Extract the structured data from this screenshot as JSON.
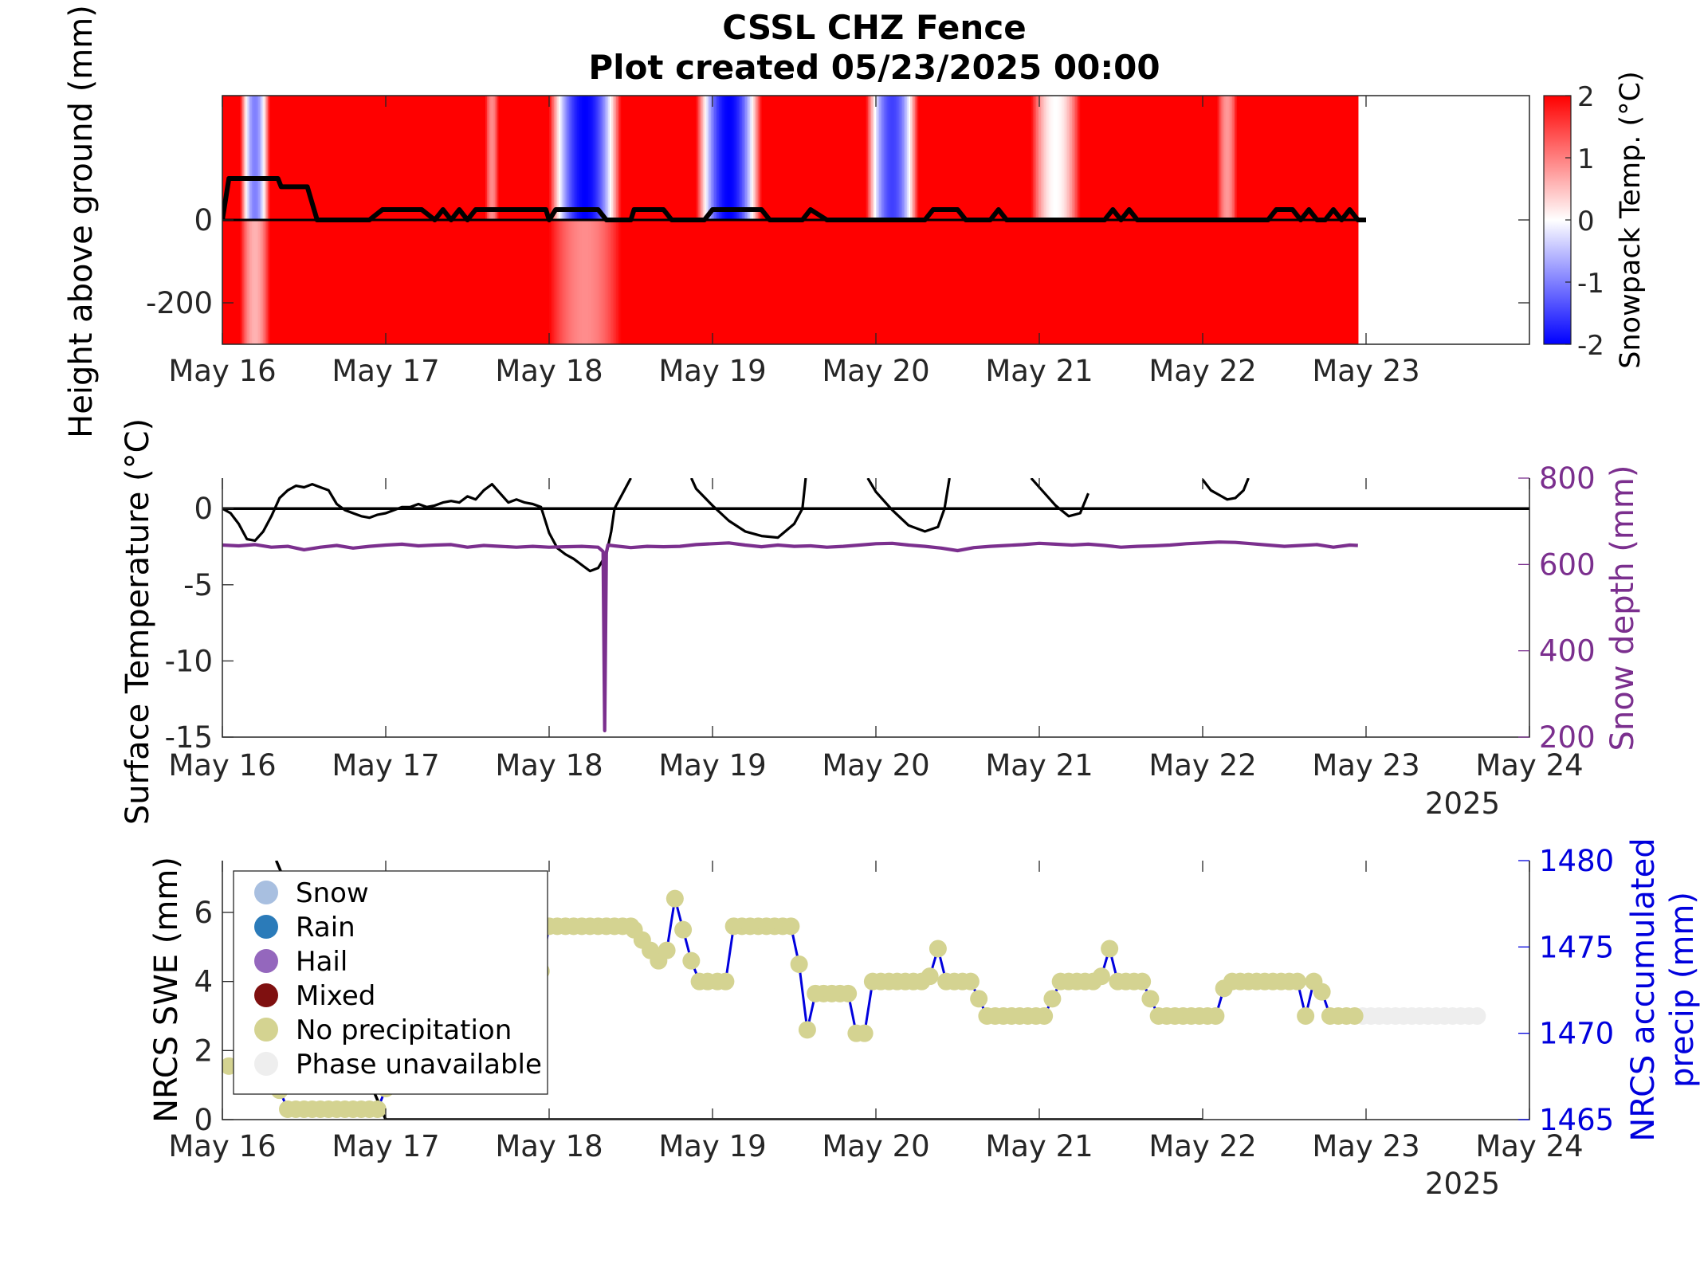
{
  "title": [
    "CSSL CHZ Fence",
    "Plot created 05/23/2025 00:00"
  ],
  "colors": {
    "black": "#000000",
    "purple": "#7b2f8e",
    "blue": "#0000dd",
    "khaki": "#d4d391",
    "unavail": "#eeeeee",
    "red": "#ff0000"
  },
  "chart_data": [
    {
      "type": "heatmap",
      "title": "",
      "ylabel": "Height above ground (mm)",
      "colorbar": {
        "label": "Snowpack Temp. (°C)",
        "ticks": [
          "2",
          "1",
          "0",
          "-1",
          "-2"
        ],
        "range": [
          -2,
          2
        ],
        "colormap": "blue-white-red"
      },
      "xlim": [
        0,
        8
      ],
      "ylim": [
        -300,
        300
      ],
      "y_ticks": [
        "0",
        "-200"
      ],
      "x_tick_labels": [
        "May 16",
        "May 17",
        "May 18",
        "May 19",
        "May 20",
        "May 21",
        "May 22",
        "May 23"
      ],
      "x_tick_positions": [
        0,
        1,
        2,
        3,
        4,
        5,
        6,
        7
      ],
      "data_extent_days": [
        0,
        6.95
      ],
      "cold_bands": [
        {
          "center": 0.2,
          "half_width": 0.09,
          "min_temp_above_ground": -1.0,
          "min_temp_below_ground": 0.6
        },
        {
          "center": 1.65,
          "half_width": 0.04,
          "min_temp_above_ground": 0.9,
          "min_temp_below_ground": 2.0
        },
        {
          "center": 2.22,
          "half_width": 0.22,
          "min_temp_above_ground": -2.0,
          "min_temp_below_ground": 0.9
        },
        {
          "center": 3.1,
          "half_width": 0.2,
          "min_temp_above_ground": -2.0,
          "min_temp_below_ground": 2.0
        },
        {
          "center": 4.1,
          "half_width": 0.16,
          "min_temp_above_ground": -1.5,
          "min_temp_below_ground": 2.0
        },
        {
          "center": 5.1,
          "half_width": 0.15,
          "min_temp_above_ground": 0.0,
          "min_temp_below_ground": 2.0
        },
        {
          "center": 6.15,
          "half_width": 0.06,
          "min_temp_above_ground": 0.8,
          "min_temp_below_ground": 2.0
        }
      ],
      "snow_surface_line": {
        "x": [
          0.0,
          0.02,
          0.04,
          0.34,
          0.36,
          0.52,
          0.58,
          0.9,
          0.98,
          1.22,
          1.3,
          1.35,
          1.4,
          1.45,
          1.5,
          1.55,
          1.6,
          1.65,
          1.7,
          1.75,
          1.8,
          1.85,
          1.9,
          1.95,
          1.98,
          2.0,
          2.04,
          2.3,
          2.35,
          2.5,
          2.52,
          2.7,
          2.75,
          2.95,
          3.0,
          3.05,
          3.3,
          3.35,
          3.55,
          3.6,
          3.7,
          3.75,
          3.8,
          4.3,
          4.35,
          4.5,
          4.55,
          4.7,
          4.75,
          4.8,
          5.4,
          5.45,
          5.5,
          5.55,
          5.6,
          5.65,
          5.7,
          5.75,
          6.4,
          6.45,
          6.55,
          6.6,
          6.65,
          6.7,
          6.75,
          6.8,
          6.85,
          6.9,
          6.95,
          7.0
        ],
        "y": [
          0,
          50,
          100,
          100,
          80,
          80,
          0,
          0,
          25,
          25,
          0,
          25,
          0,
          25,
          0,
          25,
          25,
          25,
          25,
          25,
          25,
          25,
          25,
          25,
          25,
          0,
          25,
          25,
          0,
          0,
          25,
          25,
          0,
          0,
          25,
          25,
          25,
          0,
          0,
          25,
          0,
          0,
          0,
          0,
          25,
          25,
          0,
          0,
          25,
          0,
          0,
          25,
          0,
          25,
          0,
          0,
          0,
          0,
          0,
          25,
          25,
          0,
          25,
          0,
          0,
          25,
          0,
          25,
          0,
          0
        ]
      }
    },
    {
      "type": "line",
      "title": "",
      "ylabel": "Surface Temperature (°C)",
      "y2label": "Snow depth (mm)",
      "xlim": [
        0,
        8
      ],
      "ylim": [
        -15,
        2
      ],
      "y2lim": [
        200,
        800
      ],
      "y_ticks": [
        "0",
        "-5",
        "-10",
        "-15"
      ],
      "y2_ticks": [
        "800",
        "600",
        "400",
        "200"
      ],
      "x_tick_labels": [
        "May 16",
        "May 17",
        "May 18",
        "May 19",
        "May 20",
        "May 21",
        "May 22",
        "May 23",
        "May 24"
      ],
      "x_tick_positions": [
        0,
        1,
        2,
        3,
        4,
        5,
        6,
        7,
        8
      ],
      "year_label": "2025",
      "zero_line": 0,
      "series": [
        {
          "axis": "left",
          "x": [
            0.0,
            0.05,
            0.1,
            0.15,
            0.2,
            0.25,
            0.3,
            0.35,
            0.4,
            0.45,
            0.5,
            0.55,
            0.6,
            0.65,
            0.7,
            0.75,
            0.8,
            0.85,
            0.9,
            0.95,
            1.0,
            1.05,
            1.1,
            1.15,
            1.2,
            1.25,
            1.3,
            1.35,
            1.4,
            1.45,
            1.5,
            1.55,
            1.6,
            1.65,
            1.7,
            1.75,
            1.8,
            1.85,
            1.9,
            1.95,
            2.0,
            2.05,
            2.1,
            2.15,
            2.2,
            2.25,
            2.3,
            2.35,
            2.38,
            2.4
          ],
          "y": [
            0.0,
            -0.3,
            -1.0,
            -2.0,
            -2.1,
            -1.5,
            -0.5,
            0.7,
            1.2,
            1.5,
            1.4,
            1.6,
            1.4,
            1.2,
            0.3,
            -0.1,
            -0.3,
            -0.5,
            -0.6,
            -0.4,
            -0.3,
            -0.1,
            0.1,
            0.1,
            0.3,
            0.1,
            0.2,
            0.4,
            0.5,
            0.4,
            0.8,
            0.6,
            1.2,
            1.6,
            1.0,
            0.4,
            0.6,
            0.4,
            0.3,
            0.1,
            -1.6,
            -2.6,
            -3.0,
            -3.3,
            -3.7,
            -4.1,
            -3.9,
            -3.0,
            -1.5,
            0.0
          ]
        },
        {
          "axis": "left",
          "x": [
            2.4,
            2.45,
            2.5
          ],
          "y": [
            0.0,
            1.0,
            2.0
          ]
        },
        {
          "axis": "left",
          "x": [
            2.87,
            2.9,
            3.0,
            3.1,
            3.2,
            3.3,
            3.4,
            3.5,
            3.55,
            3.57
          ],
          "y": [
            2.0,
            1.3,
            0.2,
            -0.8,
            -1.5,
            -1.8,
            -1.9,
            -1.0,
            0.0,
            2.0
          ]
        },
        {
          "axis": "left",
          "x": [
            3.95,
            4.0,
            4.1,
            4.2,
            4.3,
            4.38,
            4.42,
            4.45
          ],
          "y": [
            2.0,
            1.1,
            -0.1,
            -1.1,
            -1.5,
            -1.2,
            0.0,
            2.0
          ]
        },
        {
          "axis": "left",
          "x": [
            4.95,
            5.0,
            5.1,
            5.18,
            5.25,
            5.3
          ],
          "y": [
            2.0,
            1.4,
            0.2,
            -0.5,
            -0.3,
            1.0
          ]
        },
        {
          "axis": "left",
          "x": [
            6.0,
            6.05,
            6.1,
            6.15,
            6.2,
            6.25,
            6.28
          ],
          "y": [
            1.9,
            1.2,
            0.9,
            0.6,
            0.7,
            1.2,
            2.0
          ]
        },
        {
          "axis": "right",
          "x": [
            0.0,
            0.1,
            0.2,
            0.3,
            0.4,
            0.5,
            0.6,
            0.7,
            0.8,
            0.9,
            1.0,
            1.1,
            1.2,
            1.3,
            1.4,
            1.5,
            1.6,
            1.7,
            1.8,
            1.9,
            2.0,
            2.1,
            2.2,
            2.3,
            2.33,
            2.34,
            2.35,
            2.36,
            2.4,
            2.5,
            2.6,
            2.7,
            2.8,
            2.9,
            3.0,
            3.1,
            3.2,
            3.3,
            3.4,
            3.5,
            3.6,
            3.7,
            3.8,
            3.9,
            4.0,
            4.1,
            4.2,
            4.3,
            4.4,
            4.5,
            4.6,
            4.7,
            4.8,
            4.9,
            5.0,
            5.1,
            5.2,
            5.3,
            5.4,
            5.5,
            5.6,
            5.7,
            5.8,
            5.9,
            6.0,
            6.1,
            6.2,
            6.3,
            6.4,
            6.5,
            6.6,
            6.7,
            6.8,
            6.9,
            6.95
          ],
          "y": [
            645,
            643,
            646,
            640,
            642,
            634,
            640,
            644,
            638,
            642,
            645,
            647,
            643,
            645,
            646,
            640,
            644,
            642,
            640,
            642,
            640,
            641,
            642,
            640,
            630,
            215,
            628,
            645,
            643,
            639,
            642,
            641,
            642,
            646,
            648,
            650,
            645,
            641,
            645,
            642,
            643,
            640,
            642,
            645,
            648,
            649,
            645,
            642,
            638,
            632,
            639,
            642,
            644,
            646,
            649,
            647,
            645,
            647,
            644,
            640,
            642,
            643,
            645,
            648,
            650,
            652,
            651,
            648,
            645,
            642,
            644,
            646,
            640,
            645,
            644
          ]
        }
      ]
    },
    {
      "type": "scatter",
      "title": "",
      "ylabel": "NRCS SWE (mm)",
      "y2label": [
        "NRCS accumulated",
        "precip (mm)"
      ],
      "xlim": [
        0,
        8
      ],
      "ylim": [
        0,
        7.5
      ],
      "y2lim": [
        1465,
        1480
      ],
      "y_ticks": [
        "0",
        "2",
        "4",
        "6"
      ],
      "y2_ticks": [
        "1480",
        "1475",
        "1470",
        "1465"
      ],
      "x_tick_labels": [
        "May 16",
        "May 17",
        "May 18",
        "May 19",
        "May 20",
        "May 21",
        "May 22",
        "May 23",
        "May 24"
      ],
      "x_tick_positions": [
        0,
        1,
        2,
        3,
        4,
        5,
        6,
        7,
        8
      ],
      "year_label": "2025",
      "legend": {
        "placement": "top-left",
        "entries": [
          {
            "label": "Snow",
            "color": "#a8bfe0"
          },
          {
            "label": "Rain",
            "color": "#2b7bb9"
          },
          {
            "label": "Hail",
            "color": "#9467bd"
          },
          {
            "label": "Mixed",
            "color": "#7f1010"
          },
          {
            "label": "No precipitation",
            "color": "#d4d391"
          },
          {
            "label": "Phase unavailable",
            "color": "#eeeeee"
          }
        ]
      },
      "swe_line": {
        "x": [
          0.33,
          1.0,
          6.0
        ],
        "y": [
          7.5,
          0,
          0
        ]
      },
      "precip": {
        "x": [
          0.04,
          0.35,
          0.4,
          0.45,
          0.5,
          0.55,
          0.6,
          0.65,
          0.7,
          0.75,
          0.8,
          0.85,
          0.9,
          0.95,
          1.0,
          1.05,
          1.95,
          2.0,
          2.05,
          2.1,
          2.15,
          2.2,
          2.25,
          2.3,
          2.35,
          2.4,
          2.45,
          2.5,
          2.52,
          2.57,
          2.62,
          2.67,
          2.72,
          2.77,
          2.82,
          2.87,
          2.92,
          2.97,
          3.03,
          3.08,
          3.13,
          3.18,
          3.23,
          3.28,
          3.33,
          3.38,
          3.43,
          3.48,
          3.53,
          3.58,
          3.63,
          3.68,
          3.73,
          3.78,
          3.83,
          3.88,
          3.93,
          3.98,
          4.03,
          4.08,
          4.13,
          4.18,
          4.23,
          4.28,
          4.33,
          4.38,
          4.43,
          4.48,
          4.53,
          4.58,
          4.63,
          4.68,
          4.73,
          4.78,
          4.83,
          4.88,
          4.93,
          4.98,
          5.03,
          5.08,
          5.13,
          5.18,
          5.23,
          5.28,
          5.33,
          5.38,
          5.43,
          5.48,
          5.53,
          5.58,
          5.63,
          5.68,
          5.73,
          5.78,
          5.83,
          5.88,
          5.93,
          5.98,
          6.03,
          6.08,
          6.13,
          6.18,
          6.23,
          6.28,
          6.33,
          6.38,
          6.43,
          6.48,
          6.53,
          6.58,
          6.63,
          6.68,
          6.73,
          6.78,
          6.83,
          6.88,
          6.93
        ],
        "y": [
          1468.1,
          1466.7,
          1465.6,
          1465.6,
          1465.6,
          1465.6,
          1465.6,
          1465.6,
          1465.6,
          1465.6,
          1465.6,
          1465.6,
          1465.6,
          1465.6,
          1466.8,
          1468.1,
          1473.6,
          1476.2,
          1476.2,
          1476.2,
          1476.2,
          1476.2,
          1476.2,
          1476.2,
          1476.2,
          1476.2,
          1476.2,
          1476.2,
          1476.0,
          1475.4,
          1474.8,
          1474.2,
          1474.8,
          1477.8,
          1476.0,
          1474.2,
          1473.0,
          1473.0,
          1473.0,
          1473.0,
          1476.2,
          1476.2,
          1476.2,
          1476.2,
          1476.2,
          1476.2,
          1476.2,
          1476.2,
          1474.0,
          1470.2,
          1472.3,
          1472.3,
          1472.3,
          1472.3,
          1472.3,
          1470.0,
          1470.0,
          1473.0,
          1473.0,
          1473.0,
          1473.0,
          1473.0,
          1473.0,
          1473.0,
          1473.3,
          1474.9,
          1473.0,
          1473.0,
          1473.0,
          1473.0,
          1472.0,
          1471.0,
          1471.0,
          1471.0,
          1471.0,
          1471.0,
          1471.0,
          1471.0,
          1471.0,
          1472.0,
          1473.0,
          1473.0,
          1473.0,
          1473.0,
          1473.0,
          1473.3,
          1474.9,
          1473.0,
          1473.0,
          1473.0,
          1473.0,
          1472.0,
          1471.0,
          1471.0,
          1471.0,
          1471.0,
          1471.0,
          1471.0,
          1471.0,
          1471.0,
          1472.6,
          1473.0,
          1473.0,
          1473.0,
          1473.0,
          1473.0,
          1473.0,
          1473.0,
          1473.0,
          1473.0,
          1471.0,
          1473.0,
          1472.4,
          1471.0,
          1471.0,
          1471.0,
          1471.0
        ],
        "unavailable_x": [
          6.98,
          7.03,
          7.08,
          7.13,
          7.18,
          7.23,
          7.28,
          7.33,
          7.38,
          7.43,
          7.48,
          7.53,
          7.58,
          7.63,
          7.68
        ],
        "unavailable_y": 1471.0
      }
    }
  ]
}
